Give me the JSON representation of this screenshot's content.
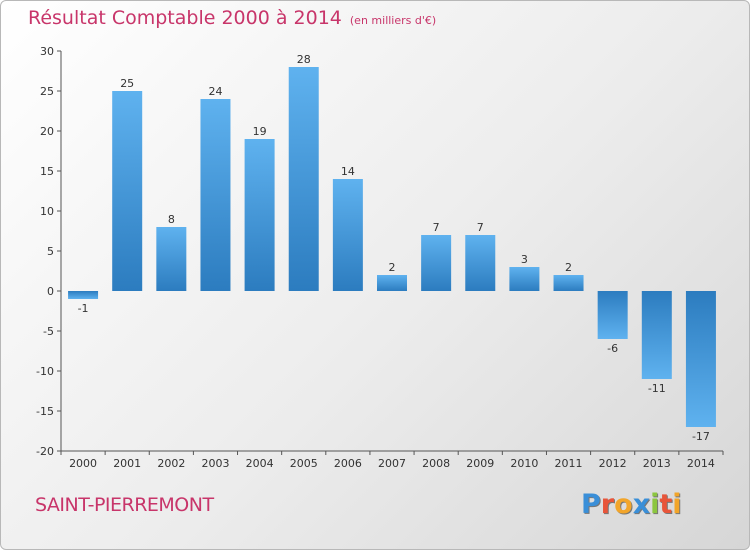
{
  "header": {
    "title": "Résultat Comptable 2000 à 2014",
    "subtitle": "(en milliers d'€)"
  },
  "commune": "SAINT-PIERREMONT",
  "logo": {
    "text": "Proxiti",
    "letters": [
      {
        "ch": "P",
        "color": "#3a8fd8"
      },
      {
        "ch": "r",
        "color": "#e8553a"
      },
      {
        "ch": "o",
        "color": "#f2a52a"
      },
      {
        "ch": "x",
        "color": "#3a8fd8"
      },
      {
        "ch": "i",
        "color": "#8cc63f"
      },
      {
        "ch": "t",
        "color": "#e8553a"
      },
      {
        "ch": "i",
        "color": "#f2a52a"
      }
    ]
  },
  "chart_data": {
    "type": "bar",
    "title": "Résultat Comptable 2000 à 2014",
    "subtitle": "(en milliers d'€)",
    "categories": [
      "2000",
      "2001",
      "2002",
      "2003",
      "2004",
      "2005",
      "2006",
      "2007",
      "2008",
      "2009",
      "2010",
      "2011",
      "2012",
      "2013",
      "2014"
    ],
    "values": [
      -1,
      25,
      8,
      24,
      19,
      28,
      14,
      2,
      7,
      7,
      3,
      2,
      -6,
      -11,
      -17
    ],
    "value_labels": [
      "-1",
      "25",
      "8",
      "24",
      "19",
      "28",
      "14",
      "2",
      "7",
      "7",
      "3",
      "2",
      "-6",
      "-11",
      "-17"
    ],
    "yticks": [
      -20,
      -15,
      -10,
      -5,
      0,
      5,
      10,
      15,
      20,
      25,
      30
    ],
    "ylim": [
      -20,
      30
    ],
    "xlabel": "",
    "ylabel": "",
    "bar_color": "#3a8fd8",
    "grid": false,
    "legend": "none"
  }
}
